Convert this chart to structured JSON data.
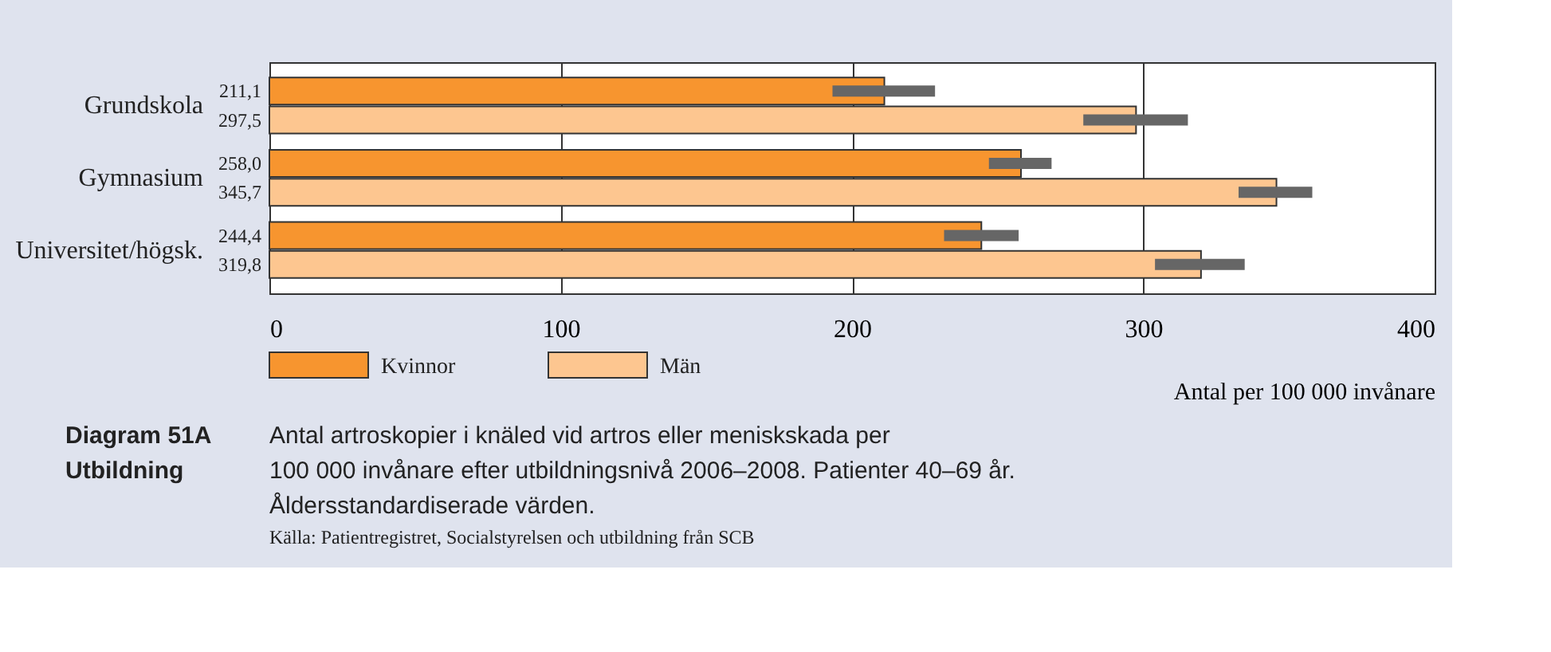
{
  "chart_data": {
    "type": "bar",
    "orientation": "horizontal",
    "title": "Diagram 51A\nUtbildning",
    "subtitle": "Antal artroskopier i knäled vid artros eller meniskskada per\n100 000 invånare efter utbildningsnivå 2006–2008. Patienter 40–69 år.\nÅldersstandardiserade värden.",
    "xlabel": "Antal per 100 000 invånare",
    "annotations": [
      "Källa: Patientregistret, Socialstyrelsen och utbildning från SCB"
    ],
    "categories": [
      "Grundskola",
      "Gymnasium",
      "Universitet/högsk."
    ],
    "series": [
      {
        "name": "Kvinnor",
        "color": "#f7952f",
        "values": [
          211.1,
          258.0,
          244.4
        ],
        "value_labels": [
          "211,1",
          "258,0",
          "244,4"
        ],
        "errors": [
          [
            193.3,
            228.5
          ],
          [
            247,
            268.5
          ],
          [
            231.6,
            257.2
          ]
        ]
      },
      {
        "name": "Män",
        "color": "#fdc690",
        "values": [
          297.5,
          345.7,
          319.8
        ],
        "value_labels": [
          "297,5",
          "345,7",
          "319,8"
        ],
        "errors": [
          [
            279.4,
            315.3
          ],
          [
            332.7,
            358
          ],
          [
            304,
            334.8
          ]
        ]
      }
    ],
    "xlim": [
      0,
      400
    ],
    "xticks": [
      0,
      100,
      200,
      300,
      400
    ],
    "grid": "x",
    "legend": "bottom"
  }
}
